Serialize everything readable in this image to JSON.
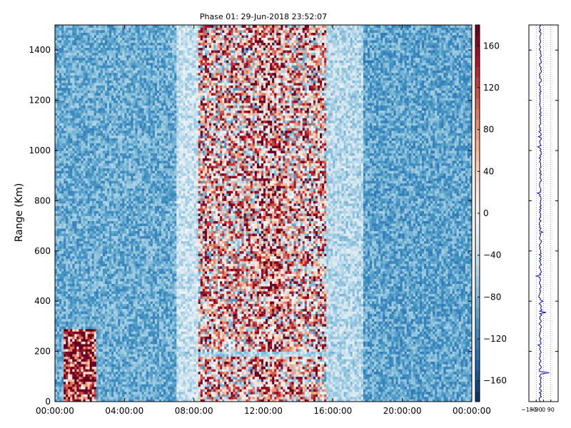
{
  "chart_data": [
    {
      "type": "heatmap",
      "title": "Phase 01: 29-Jun-2018 23:52:07",
      "xlabel": "",
      "ylabel": "Range (Km)",
      "x_tick_labels": [
        "00:00:00",
        "04:00:00",
        "08:00:00",
        "12:00:00",
        "16:00:00",
        "20:00:00",
        "00:00:00"
      ],
      "x_range_hours": [
        0,
        24
      ],
      "ylim": [
        0,
        1500
      ],
      "y_ticks": [
        0,
        200,
        400,
        600,
        800,
        1000,
        1200,
        1400
      ],
      "colorbar": {
        "colormap": "RdBu_r",
        "range": [
          -180,
          180
        ],
        "ticks": [
          -160,
          -120,
          -80,
          -40,
          0,
          40,
          80,
          120,
          160
        ]
      },
      "features": [
        {
          "time_hours": [
            0,
            7
          ],
          "range_km": [
            0,
            1500
          ],
          "value": -90
        },
        {
          "time_hours": [
            7,
            8.2
          ],
          "range_km": [
            0,
            1500
          ],
          "value": -40
        },
        {
          "time_hours": [
            8.2,
            15.6
          ],
          "range_km": [
            0,
            1500
          ],
          "value": 40
        },
        {
          "time_hours": [
            11.8,
            13.0
          ],
          "range_km": [
            0,
            1500
          ],
          "value": 70
        },
        {
          "time_hours": [
            15.6,
            17.8
          ],
          "range_km": [
            0,
            1500
          ],
          "value": -50
        },
        {
          "time_hours": [
            17.8,
            24
          ],
          "range_km": [
            0,
            1500
          ],
          "value": -95
        },
        {
          "time_hours": [
            0.5,
            2.4
          ],
          "range_km": [
            0,
            290
          ],
          "value": 150
        },
        {
          "time_hours": [
            7.0,
            17.8
          ],
          "range_km": [
            185,
            200
          ],
          "value": -55
        }
      ]
    },
    {
      "type": "line",
      "title": "",
      "xlabel": "",
      "ylabel": "",
      "x_tick_labels": [
        "−180",
        "−90",
        "0",
        "90"
      ],
      "xlim": [
        -180,
        180
      ],
      "ylim": [
        0,
        1500
      ],
      "grid": true,
      "profile_spikes": [
        {
          "range_km": 500,
          "value": -90
        },
        {
          "range_km": 353,
          "value": 30
        },
        {
          "range_km": 113,
          "value": 70
        }
      ]
    }
  ]
}
